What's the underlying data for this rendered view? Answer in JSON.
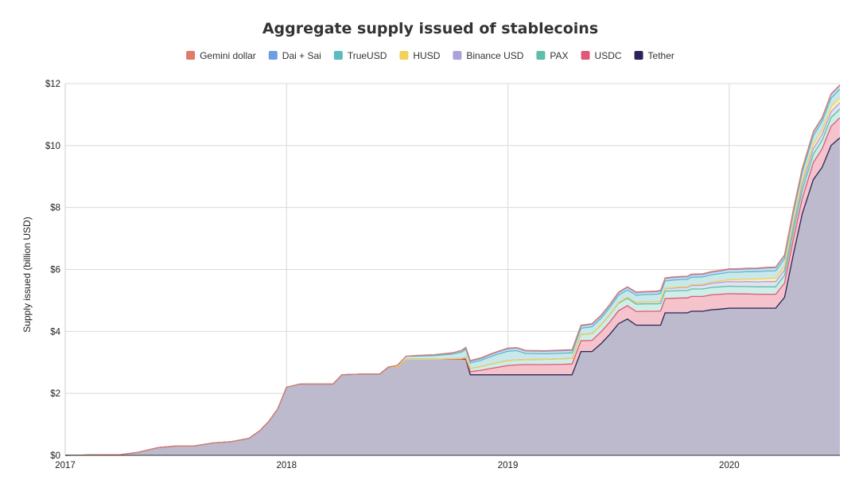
{
  "chart_data": {
    "type": "area",
    "stacked": true,
    "title": "Aggregate supply issued of stablecoins",
    "xlabel": "",
    "ylabel": "Supply issued (billion USD)",
    "xlim": [
      2017.0,
      2020.5
    ],
    "ylim": [
      0,
      12
    ],
    "y_ticks": [
      0,
      2,
      4,
      6,
      8,
      10,
      12
    ],
    "y_tick_labels": [
      "$0",
      "$2",
      "$4",
      "$6",
      "$8",
      "$10",
      "$12"
    ],
    "x_ticks": [
      2017,
      2018,
      2019,
      2020
    ],
    "x_tick_labels": [
      "2017",
      "2018",
      "2019",
      "2020"
    ],
    "grid": true,
    "legend_position": "top",
    "x": [
      2017.0,
      2017.08,
      2017.17,
      2017.25,
      2017.33,
      2017.42,
      2017.5,
      2017.58,
      2017.67,
      2017.75,
      2017.83,
      2017.88,
      2017.92,
      2017.96,
      2018.0,
      2018.06,
      2018.12,
      2018.17,
      2018.21,
      2018.25,
      2018.33,
      2018.42,
      2018.46,
      2018.5,
      2018.54,
      2018.58,
      2018.67,
      2018.75,
      2018.79,
      2018.81,
      2018.83,
      2018.88,
      2018.92,
      2018.96,
      2019.0,
      2019.04,
      2019.08,
      2019.17,
      2019.25,
      2019.29,
      2019.33,
      2019.38,
      2019.42,
      2019.46,
      2019.5,
      2019.54,
      2019.58,
      2019.62,
      2019.67,
      2019.69,
      2019.71,
      2019.75,
      2019.79,
      2019.81,
      2019.83,
      2019.88,
      2019.92,
      2019.96,
      2020.0,
      2020.04,
      2020.08,
      2020.12,
      2020.17,
      2020.21,
      2020.25,
      2020.29,
      2020.33,
      2020.38,
      2020.42,
      2020.46,
      2020.5
    ],
    "series": [
      {
        "name": "Tether",
        "color": "#2b2456",
        "fill": "#bdbacd",
        "values": [
          0.0,
          0.01,
          0.02,
          0.02,
          0.1,
          0.25,
          0.3,
          0.3,
          0.4,
          0.44,
          0.55,
          0.8,
          1.1,
          1.5,
          2.2,
          2.3,
          2.3,
          2.3,
          2.3,
          2.6,
          2.62,
          2.62,
          2.85,
          2.85,
          3.1,
          3.1,
          3.1,
          3.1,
          3.1,
          3.1,
          2.6,
          2.6,
          2.6,
          2.6,
          2.6,
          2.6,
          2.6,
          2.6,
          2.6,
          2.6,
          3.35,
          3.35,
          3.6,
          3.9,
          4.25,
          4.4,
          4.2,
          4.2,
          4.2,
          4.2,
          4.6,
          4.6,
          4.6,
          4.6,
          4.65,
          4.65,
          4.7,
          4.72,
          4.75,
          4.75,
          4.75,
          4.75,
          4.75,
          4.75,
          5.1,
          6.5,
          7.8,
          8.9,
          9.3,
          10.0,
          10.25
        ]
      },
      {
        "name": "USDC",
        "color": "#df5878",
        "fill": "#f4c3cc",
        "values": [
          0,
          0,
          0,
          0,
          0,
          0,
          0,
          0,
          0,
          0,
          0,
          0,
          0,
          0,
          0,
          0,
          0,
          0,
          0,
          0,
          0,
          0,
          0,
          0,
          0,
          0,
          0,
          0,
          0,
          0.02,
          0.1,
          0.15,
          0.2,
          0.25,
          0.3,
          0.32,
          0.33,
          0.33,
          0.34,
          0.35,
          0.35,
          0.36,
          0.38,
          0.4,
          0.42,
          0.43,
          0.44,
          0.45,
          0.45,
          0.46,
          0.46,
          0.47,
          0.48,
          0.48,
          0.48,
          0.48,
          0.48,
          0.48,
          0.47,
          0.46,
          0.46,
          0.45,
          0.45,
          0.45,
          0.46,
          0.5,
          0.5,
          0.55,
          0.6,
          0.62,
          0.65
        ]
      },
      {
        "name": "PAX",
        "color": "#5cbfa7",
        "fill": "#cfeee7",
        "values": [
          0,
          0,
          0,
          0,
          0,
          0,
          0,
          0,
          0,
          0,
          0,
          0,
          0,
          0,
          0,
          0,
          0,
          0,
          0,
          0,
          0,
          0,
          0,
          0,
          0,
          0,
          0,
          0.02,
          0.03,
          0.05,
          0.1,
          0.12,
          0.14,
          0.15,
          0.16,
          0.16,
          0.16,
          0.17,
          0.18,
          0.18,
          0.2,
          0.22,
          0.22,
          0.23,
          0.24,
          0.24,
          0.24,
          0.24,
          0.24,
          0.24,
          0.24,
          0.24,
          0.24,
          0.24,
          0.24,
          0.24,
          0.24,
          0.24,
          0.24,
          0.24,
          0.24,
          0.24,
          0.24,
          0.24,
          0.25,
          0.26,
          0.26,
          0.27,
          0.27,
          0.28,
          0.28
        ]
      },
      {
        "name": "Binance USD",
        "color": "#a9a3d9",
        "fill": "#e3e1f3",
        "values": [
          0,
          0,
          0,
          0,
          0,
          0,
          0,
          0,
          0,
          0,
          0,
          0,
          0,
          0,
          0,
          0,
          0,
          0,
          0,
          0,
          0,
          0,
          0,
          0,
          0,
          0,
          0,
          0,
          0,
          0,
          0,
          0,
          0,
          0,
          0,
          0,
          0,
          0,
          0,
          0,
          0,
          0,
          0,
          0.01,
          0.02,
          0.03,
          0.05,
          0.06,
          0.07,
          0.08,
          0.08,
          0.09,
          0.1,
          0.1,
          0.11,
          0.12,
          0.13,
          0.14,
          0.15,
          0.15,
          0.16,
          0.16,
          0.17,
          0.17,
          0.17,
          0.18,
          0.18,
          0.18,
          0.19,
          0.19,
          0.2
        ]
      },
      {
        "name": "HUSD",
        "color": "#f2d05a",
        "fill": "#faefc2",
        "values": [
          0,
          0,
          0,
          0,
          0,
          0,
          0,
          0,
          0,
          0,
          0,
          0,
          0,
          0,
          0,
          0,
          0,
          0,
          0,
          0,
          0,
          0,
          0,
          0,
          0,
          0,
          0,
          0,
          0,
          0,
          0,
          0,
          0,
          0,
          0,
          0,
          0,
          0,
          0,
          0,
          0,
          0,
          0,
          0,
          0,
          0,
          0,
          0,
          0,
          0.01,
          0.01,
          0.02,
          0.02,
          0.02,
          0.03,
          0.03,
          0.04,
          0.05,
          0.06,
          0.07,
          0.08,
          0.09,
          0.1,
          0.11,
          0.12,
          0.13,
          0.14,
          0.15,
          0.15,
          0.16,
          0.16
        ]
      },
      {
        "name": "TrueUSD",
        "color": "#5bbac2",
        "fill": "#c9e8eb",
        "values": [
          0,
          0,
          0,
          0,
          0,
          0,
          0,
          0,
          0,
          0,
          0,
          0,
          0,
          0,
          0,
          0,
          0,
          0,
          0,
          0,
          0,
          0,
          0,
          0.05,
          0.1,
          0.1,
          0.12,
          0.15,
          0.2,
          0.25,
          0.18,
          0.2,
          0.24,
          0.28,
          0.3,
          0.3,
          0.2,
          0.18,
          0.18,
          0.18,
          0.2,
          0.22,
          0.22,
          0.23,
          0.24,
          0.24,
          0.24,
          0.24,
          0.24,
          0.24,
          0.24,
          0.24,
          0.24,
          0.24,
          0.24,
          0.24,
          0.24,
          0.24,
          0.24,
          0.24,
          0.24,
          0.24,
          0.24,
          0.24,
          0.25,
          0.26,
          0.26,
          0.27,
          0.27,
          0.28,
          0.28
        ]
      },
      {
        "name": "Dai + Sai",
        "color": "#6d9ee3",
        "fill": "#cfddf5",
        "values": [
          0,
          0,
          0,
          0,
          0,
          0,
          0,
          0,
          0,
          0,
          0,
          0,
          0,
          0,
          0,
          0,
          0,
          0,
          0,
          0,
          0,
          0,
          0,
          0,
          0,
          0.02,
          0.03,
          0.04,
          0.05,
          0.05,
          0.06,
          0.06,
          0.07,
          0.07,
          0.08,
          0.08,
          0.08,
          0.08,
          0.08,
          0.08,
          0.08,
          0.08,
          0.08,
          0.08,
          0.08,
          0.08,
          0.08,
          0.08,
          0.08,
          0.08,
          0.08,
          0.08,
          0.08,
          0.08,
          0.08,
          0.08,
          0.08,
          0.08,
          0.09,
          0.09,
          0.09,
          0.09,
          0.1,
          0.1,
          0.1,
          0.1,
          0.11,
          0.11,
          0.11,
          0.12,
          0.12
        ]
      },
      {
        "name": "Gemini dollar",
        "color": "#e07a6c",
        "fill": "#f6d3ce",
        "values": [
          0,
          0,
          0,
          0,
          0,
          0,
          0,
          0,
          0,
          0,
          0,
          0,
          0,
          0,
          0,
          0,
          0,
          0,
          0,
          0,
          0,
          0,
          0,
          0,
          0,
          0,
          0,
          0,
          0.01,
          0.02,
          0.02,
          0.02,
          0.02,
          0.02,
          0.02,
          0.02,
          0.02,
          0.02,
          0.02,
          0.02,
          0.02,
          0.02,
          0.02,
          0.02,
          0.02,
          0.02,
          0.02,
          0.02,
          0.02,
          0.02,
          0.02,
          0.02,
          0.02,
          0.02,
          0.02,
          0.02,
          0.02,
          0.02,
          0.02,
          0.02,
          0.02,
          0.02,
          0.02,
          0.02,
          0.02,
          0.02,
          0.02,
          0.02,
          0.02,
          0.02,
          0.02
        ]
      }
    ]
  }
}
